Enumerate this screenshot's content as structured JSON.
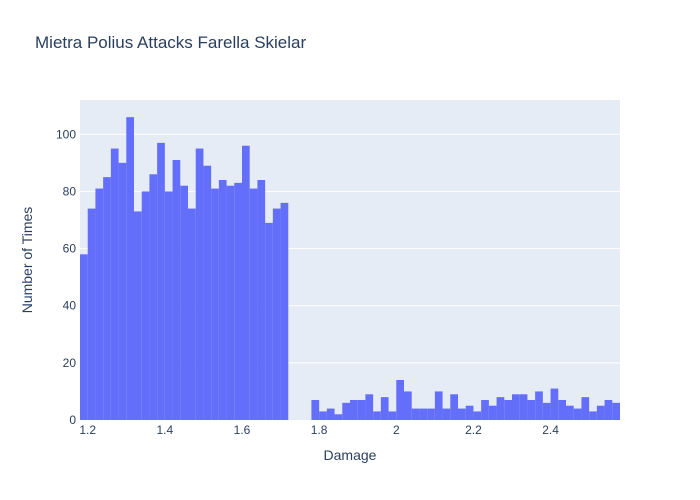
{
  "chart_data": {
    "type": "bar",
    "subtype": "histogram",
    "title": "Mietra Polius Attacks Farella Skielar",
    "xlabel": "Damage",
    "ylabel": "Number of Times",
    "xlim": [
      1.18,
      2.58
    ],
    "ylim": [
      0,
      112
    ],
    "bin_width": 0.02,
    "bin_starts": [
      1.18,
      1.2,
      1.22,
      1.24,
      1.26,
      1.28,
      1.3,
      1.32,
      1.34,
      1.36,
      1.38,
      1.4,
      1.42,
      1.44,
      1.46,
      1.48,
      1.5,
      1.52,
      1.54,
      1.56,
      1.58,
      1.6,
      1.62,
      1.64,
      1.66,
      1.68,
      1.7,
      1.72,
      1.74,
      1.76,
      1.78,
      1.8,
      1.82,
      1.84,
      1.86,
      1.88,
      1.9,
      1.92,
      1.94,
      1.96,
      1.98,
      2.0,
      2.02,
      2.04,
      2.06,
      2.08,
      2.1,
      2.12,
      2.14,
      2.16,
      2.18,
      2.2,
      2.22,
      2.24,
      2.26,
      2.28,
      2.3,
      2.32,
      2.34,
      2.36,
      2.38,
      2.4,
      2.42,
      2.44,
      2.46,
      2.48,
      2.5,
      2.52,
      2.54,
      2.56
    ],
    "values": [
      58,
      74,
      81,
      85,
      95,
      90,
      106,
      73,
      80,
      86,
      97,
      80,
      91,
      82,
      74,
      95,
      89,
      81,
      84,
      82,
      83,
      96,
      81,
      84,
      69,
      74,
      76,
      0,
      0,
      0,
      7,
      3,
      4,
      2,
      6,
      7,
      7,
      9,
      3,
      8,
      3,
      14,
      10,
      4,
      4,
      4,
      10,
      4,
      9,
      4,
      5,
      3,
      7,
      5,
      8,
      7,
      9,
      9,
      7,
      10,
      6,
      11,
      7,
      5,
      4,
      8,
      3,
      5,
      7,
      6
    ],
    "x_ticks": [
      1.2,
      1.4,
      1.6,
      1.8,
      2,
      2.2,
      2.4
    ],
    "x_tick_labels": [
      "1.2",
      "1.4",
      "1.6",
      "1.8",
      "2",
      "2.2",
      "2.4"
    ],
    "y_ticks": [
      0,
      20,
      40,
      60,
      80,
      100
    ],
    "y_tick_labels": [
      "0",
      "20",
      "40",
      "60",
      "80",
      "100"
    ],
    "grid": true,
    "bar_color": "#636efa",
    "plot_bg": "#e5ecf6",
    "grid_color": "#ffffff",
    "text_color": "#2a3f5f"
  }
}
